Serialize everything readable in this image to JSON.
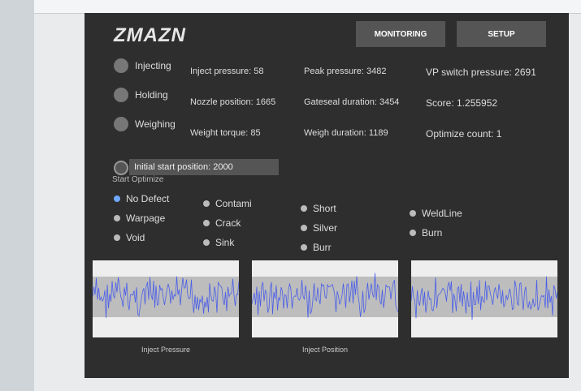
{
  "header": {
    "logo": "ZMAZN",
    "buttons": [
      "MONITORING",
      "SETUP"
    ]
  },
  "status": [
    "Injecting",
    "Holding",
    "Weighing"
  ],
  "metrics": [
    [
      {
        "label": "Inject pressure:",
        "value": 58
      },
      {
        "label": "Nozzle position:",
        "value": 1665
      },
      {
        "label": "Weight torque:",
        "value": 85
      }
    ],
    [
      {
        "label": "Peak pressure:",
        "value": 3482
      },
      {
        "label": "Gateseal duration:",
        "value": 3454
      },
      {
        "label": "Weigh duration:",
        "value": 1189
      }
    ],
    [
      {
        "label": "VP switch pressure:",
        "value": 2691
      },
      {
        "label": "Score:",
        "value": 1.255952
      },
      {
        "label": "Optimize count:",
        "value": 1
      }
    ]
  ],
  "input": {
    "label": "Initial start position:",
    "value": 2000
  },
  "optimize": {
    "title": "Start Optimize",
    "options": [
      [
        "No Defect",
        "Warpage",
        "Void"
      ],
      [
        "Contami",
        "Crack",
        "Sink"
      ],
      [
        "Short",
        "Silver",
        "Burr"
      ],
      [
        "WeldLine",
        "Burn"
      ]
    ]
  },
  "charts": [
    "Inject Pressure",
    "Inject Position",
    null
  ]
}
